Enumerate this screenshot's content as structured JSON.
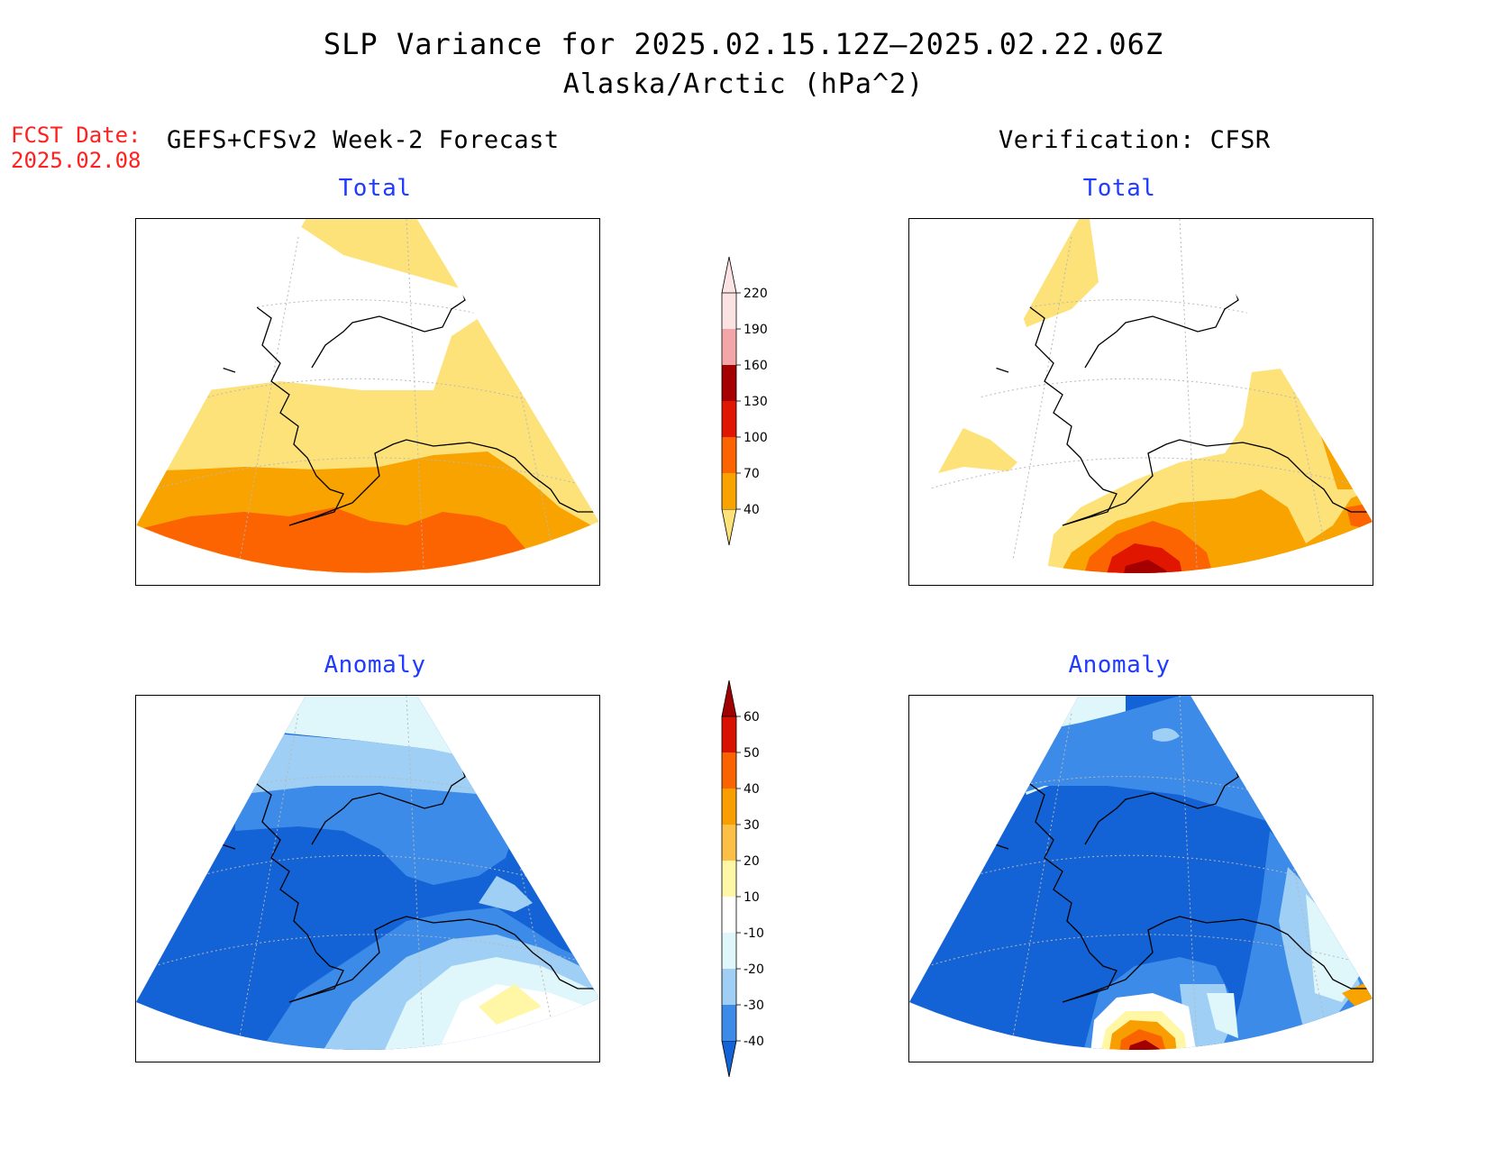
{
  "title": {
    "line1": "SLP Variance for 2025.02.15.12Z—2025.02.22.06Z",
    "line2": "Alaska/Arctic (hPa^2)"
  },
  "forecast_date": {
    "label": "FCST Date:",
    "value": "2025.02.08"
  },
  "headers": {
    "left": "GEFS+CFSv2 Week-2 Forecast",
    "right": "Verification: CFSR"
  },
  "panels": {
    "fcst_total": "Total",
    "verif_total": "Total",
    "fcst_anomaly": "Anomaly",
    "verif_anomaly": "Anomaly"
  },
  "total_colorbar": {
    "levels": [
      "40",
      "70",
      "100",
      "130",
      "160",
      "190",
      "220"
    ],
    "colors": [
      "#fde27a",
      "#f9a300",
      "#fb6400",
      "#e01600",
      "#a50000",
      "#f4a5a7",
      "#fbe3e3"
    ]
  },
  "anomaly_colorbar": {
    "levels": [
      "-40",
      "-30",
      "-20",
      "-10",
      "10",
      "20",
      "30",
      "40",
      "50",
      "60"
    ],
    "colors": [
      "#1463d6",
      "#3d8be8",
      "#9fcff5",
      "#dff6fa",
      "#ffffff",
      "#fff7a6",
      "#fdc047",
      "#f99e00",
      "#f96400",
      "#d91200",
      "#a00000"
    ]
  }
}
